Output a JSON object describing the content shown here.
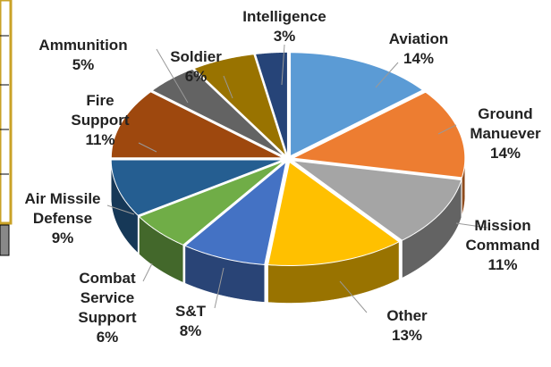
{
  "chart_data": {
    "type": "pie",
    "categories": [
      "Aviation",
      "Ground Manuever",
      "Mission Command",
      "Other",
      "S&T",
      "Combat Service Support",
      "Air Missile Defense",
      "Fire Support",
      "Ammunition",
      "Soldier",
      "Intelligence"
    ],
    "values": [
      14,
      14,
      11,
      13,
      8,
      6,
      9,
      11,
      5,
      6,
      3
    ],
    "value_labels": [
      "14%",
      "14%",
      "11%",
      "13%",
      "8%",
      "6%",
      "9%",
      "11%",
      "5%",
      "6%",
      "3%"
    ],
    "colors": [
      "#5b9bd5",
      "#ed7d31",
      "#a5a5a5",
      "#ffc000",
      "#4472c4",
      "#70ad47",
      "#255e91",
      "#9e480e",
      "#636363",
      "#997300",
      "#264478"
    ]
  }
}
